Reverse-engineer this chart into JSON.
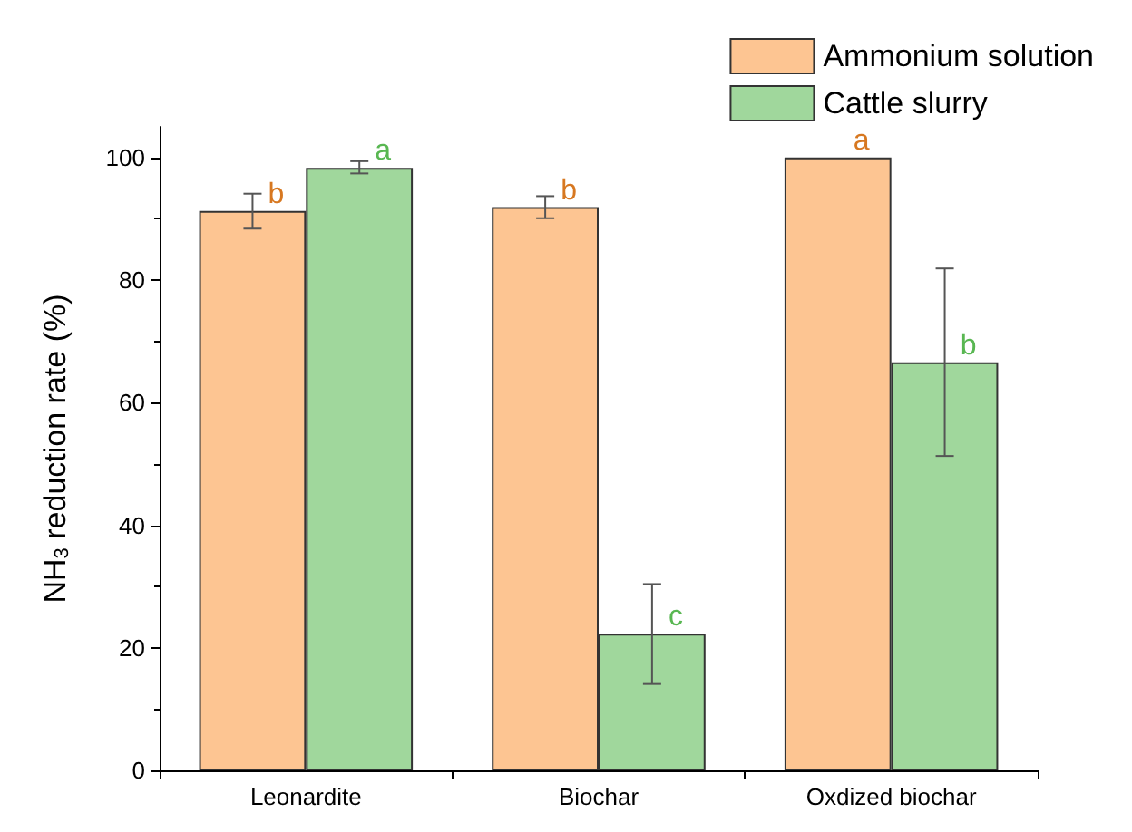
{
  "chart_data": {
    "type": "bar",
    "ylabel": "NH$_{3}$ reduction rate (%)",
    "categories": [
      "Leonardite",
      "Biochar",
      "Oxdized biochar"
    ],
    "series": [
      {
        "name": "Ammonium solution",
        "color": "#fdc592",
        "values": [
          91.3,
          91.9,
          100
        ],
        "errors": [
          [
            88.4,
            94.1
          ],
          [
            90.1,
            93.7
          ],
          null
        ],
        "value_labels": [
          "b",
          "b",
          "a"
        ]
      },
      {
        "name": "Cattle slurry",
        "color": "#a0d79c",
        "values": [
          98.3,
          22.3,
          66.6
        ],
        "errors": [
          [
            97.4,
            99.4
          ],
          [
            14.1,
            30.4
          ],
          [
            51.3,
            81.9
          ]
        ],
        "value_labels": [
          "a",
          "c",
          "b"
        ]
      }
    ],
    "ylim": [
      0,
      105
    ],
    "yticks": [
      0,
      20,
      40,
      60,
      80,
      100
    ],
    "grid": false,
    "legend": "top right"
  }
}
